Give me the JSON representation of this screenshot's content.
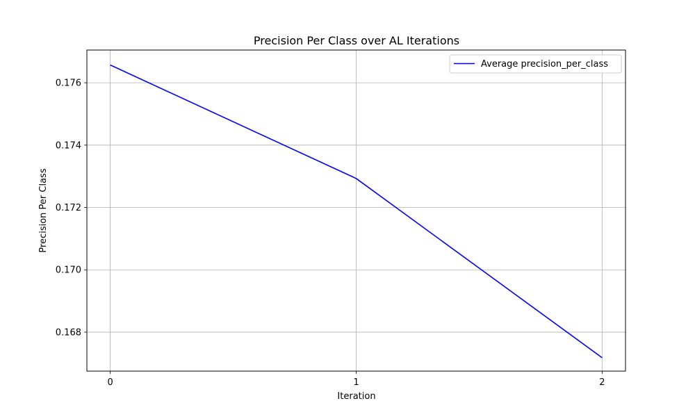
{
  "chart_data": {
    "type": "line",
    "title": "Precision Per Class over AL Iterations",
    "xlabel": "Iteration",
    "ylabel": "Precision Per Class",
    "x": [
      0,
      1,
      2
    ],
    "x_ticks": [
      "0",
      "1",
      "2"
    ],
    "y_ticks": [
      "0.168",
      "0.170",
      "0.172",
      "0.174",
      "0.176"
    ],
    "xlim": [
      -0.095,
      2.095
    ],
    "ylim": [
      0.16675,
      0.17705
    ],
    "grid": true,
    "legend_position": "top-right",
    "series": [
      {
        "name": "Average precision_per_class",
        "values": [
          0.17657,
          0.17293,
          0.16718
        ],
        "color": "#0000ff"
      }
    ],
    "colors": {
      "grid": "#b0b0b0",
      "axes": "#000000",
      "legend_border": "#cccccc"
    }
  }
}
